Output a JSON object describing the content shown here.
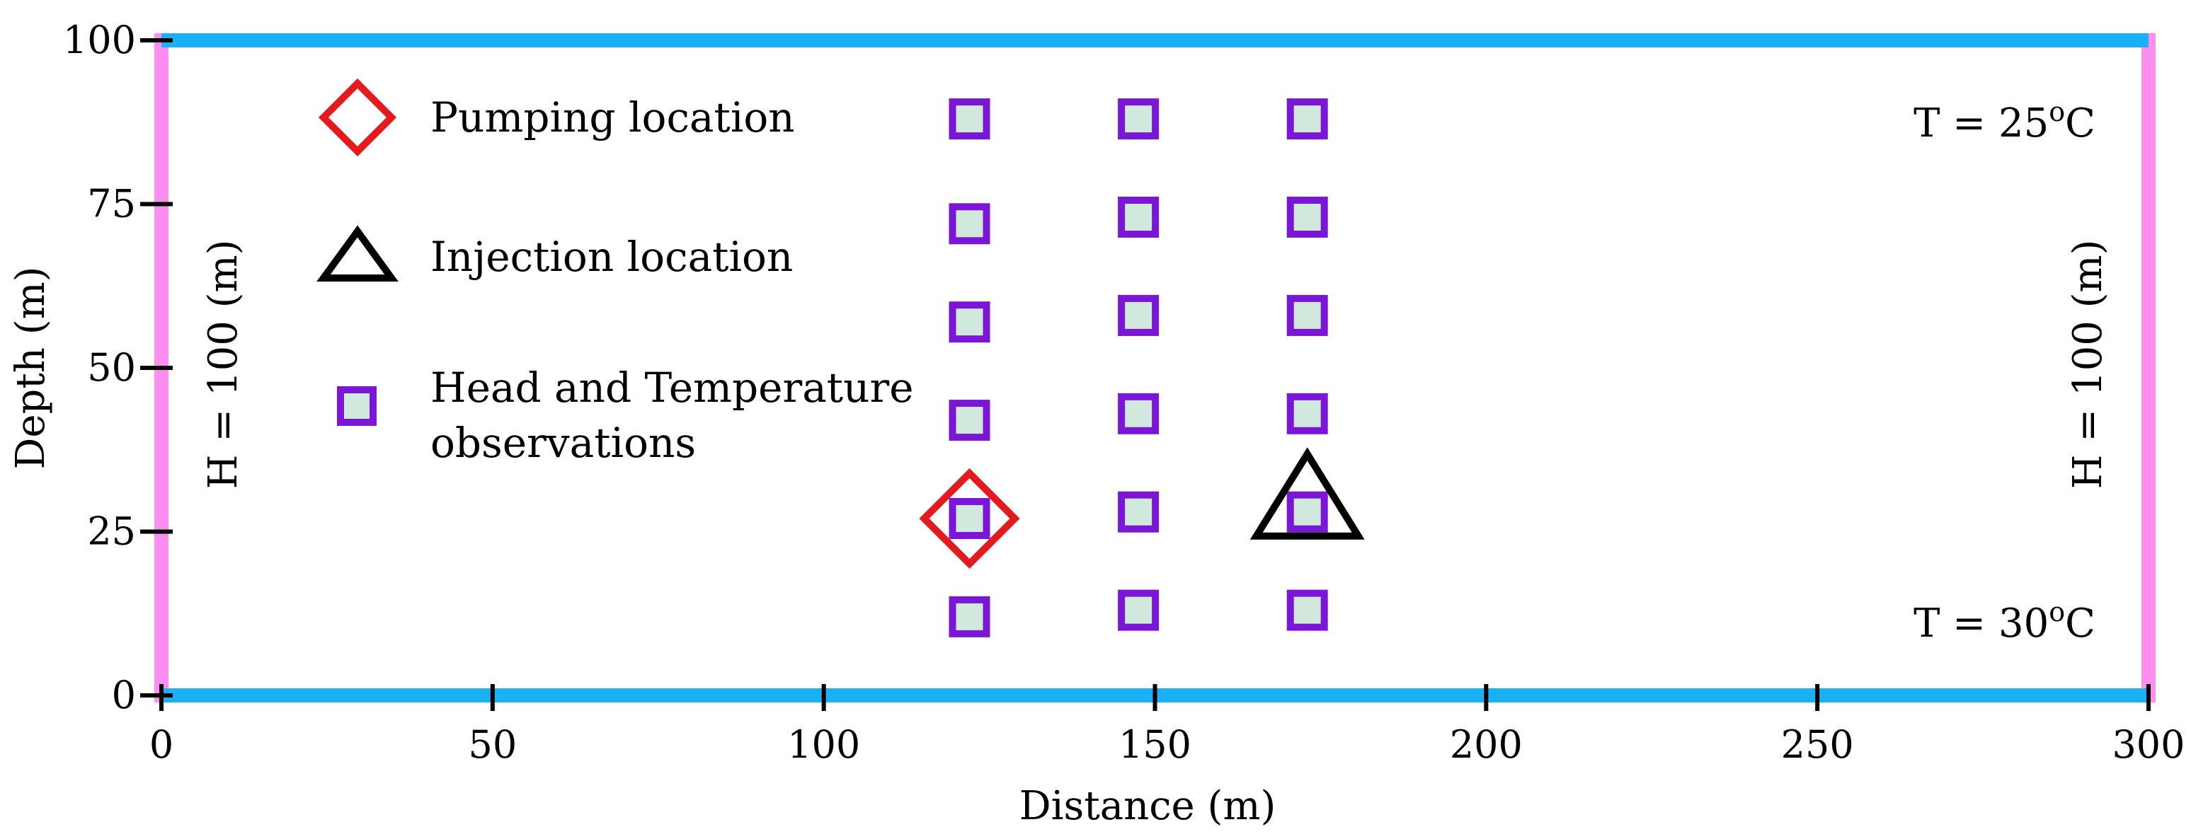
{
  "axes": {
    "x": {
      "label": "Distance (m)",
      "min": 0,
      "max": 300,
      "ticks": [
        0,
        50,
        100,
        150,
        200,
        250,
        300
      ]
    },
    "y": {
      "label": "Depth (m)",
      "min": 0,
      "max": 100,
      "ticks": [
        0,
        25,
        50,
        75,
        100
      ]
    }
  },
  "legend": {
    "pumping": "Pumping location",
    "injection": "Injection location",
    "observations_line1": "Head and Temperature",
    "observations_line2": "observations"
  },
  "boundaries": {
    "left_head": "H = 100 (m)",
    "right_head": "H = 100 (m)",
    "top_temp": "T = 25",
    "bottom_temp": "T = 30",
    "degree_symbol": "o",
    "temp_unit": "C"
  },
  "colors": {
    "temperature_boundary": "#1ab0f5",
    "head_boundary": "#ff8ef0",
    "pumping": "#e41a1c",
    "injection": "#000000",
    "observation_stroke": "#7b16d6",
    "observation_fill": "#d1e8dc"
  },
  "chart_data": {
    "type": "scatter",
    "x_range": [
      0,
      300
    ],
    "y_range": [
      0,
      100
    ],
    "series": [
      {
        "name": "Head and Temperature observations",
        "marker": "square",
        "points": [
          {
            "x": 122,
            "y": 88
          },
          {
            "x": 122,
            "y": 72
          },
          {
            "x": 122,
            "y": 57
          },
          {
            "x": 122,
            "y": 42
          },
          {
            "x": 122,
            "y": 27
          },
          {
            "x": 122,
            "y": 12
          },
          {
            "x": 147.5,
            "y": 88
          },
          {
            "x": 147.5,
            "y": 73
          },
          {
            "x": 147.5,
            "y": 58
          },
          {
            "x": 147.5,
            "y": 43
          },
          {
            "x": 147.5,
            "y": 28
          },
          {
            "x": 147.5,
            "y": 13
          },
          {
            "x": 173,
            "y": 88
          },
          {
            "x": 173,
            "y": 73
          },
          {
            "x": 173,
            "y": 58
          },
          {
            "x": 173,
            "y": 43
          },
          {
            "x": 173,
            "y": 28
          },
          {
            "x": 173,
            "y": 13
          }
        ]
      },
      {
        "name": "Pumping location",
        "marker": "diamond",
        "points": [
          {
            "x": 122,
            "y": 27
          }
        ]
      },
      {
        "name": "Injection location",
        "marker": "triangle",
        "points": [
          {
            "x": 173,
            "y": 28
          }
        ]
      }
    ]
  }
}
